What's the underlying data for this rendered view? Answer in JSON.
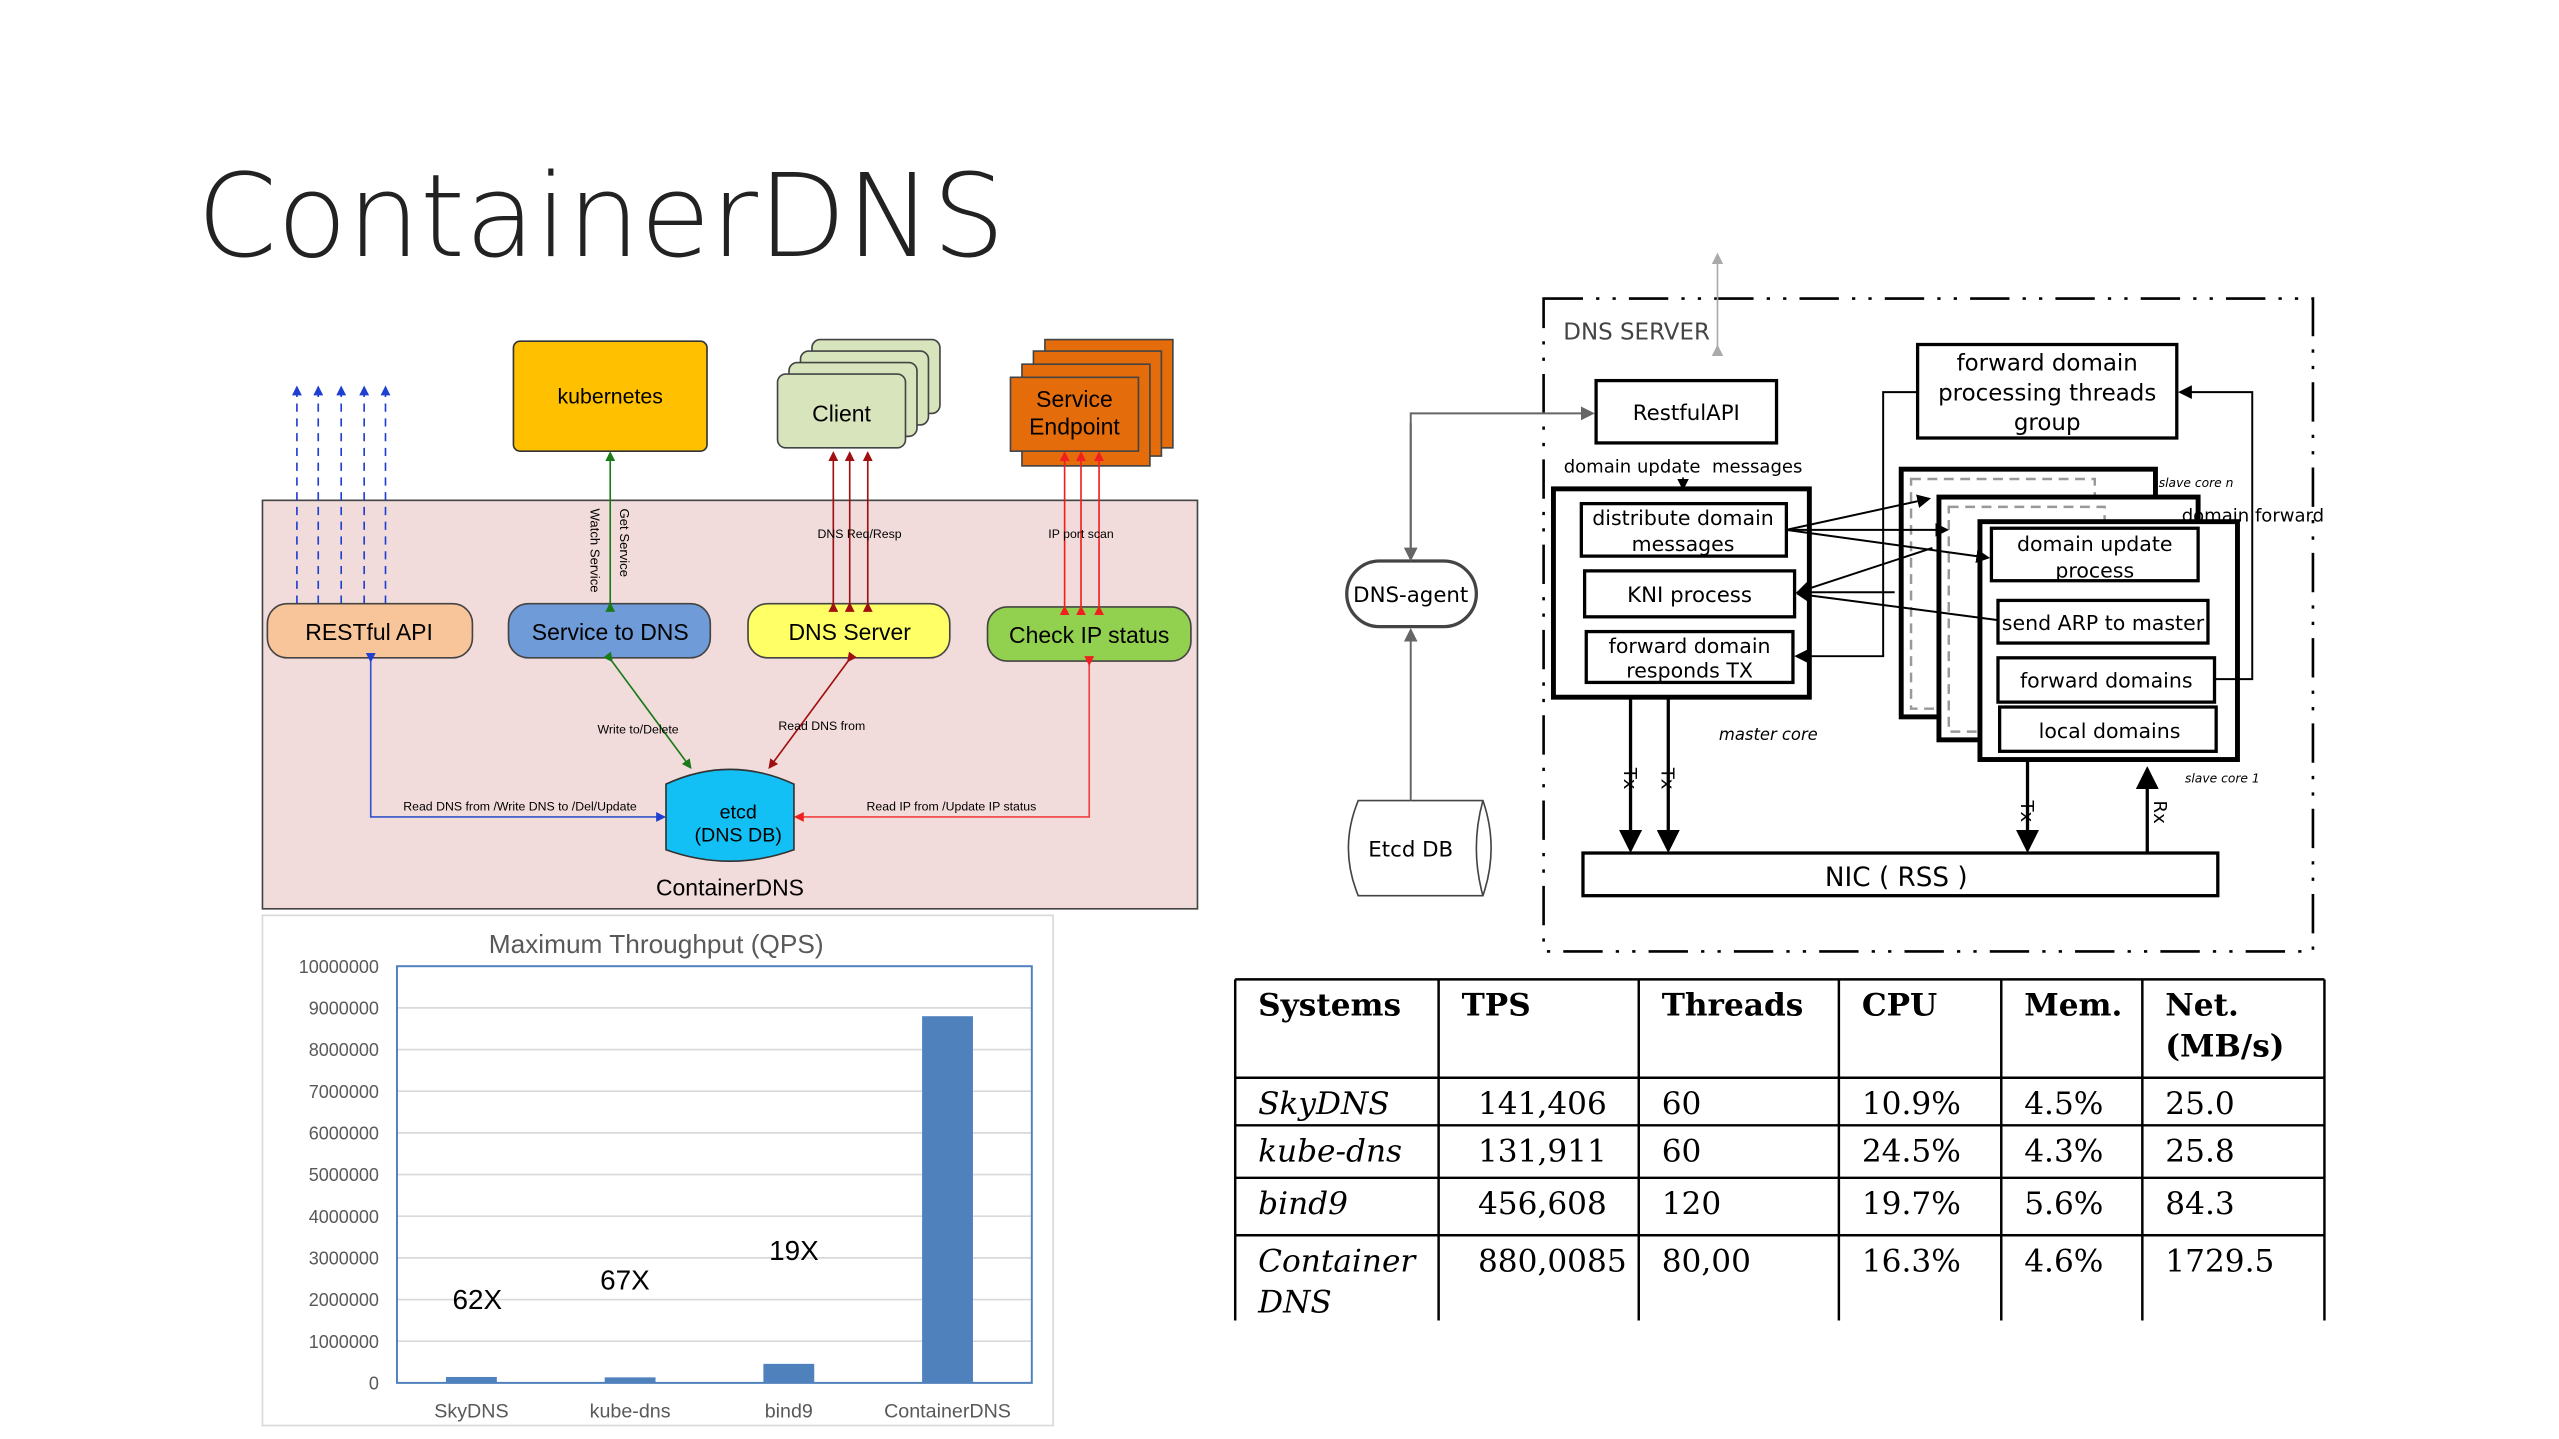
{
  "slide": {
    "title": "ContainerDNS"
  },
  "arch_diagram": {
    "kubernetes": "kubernetes",
    "client": "Client",
    "service_endpoint": [
      "Service",
      "Endpoint"
    ],
    "restful_api": "RESTful API",
    "service_to_dns": "Service to DNS",
    "dns_server": "DNS Server",
    "check_ip_status": "Check IP status",
    "watch_service": "Watch  Service",
    "get_service": "Get  Service",
    "dns_req_resp": "DNS Req/Resp",
    "ip_port_scan": "IP port scan",
    "write_delete": "Write to/Delete",
    "read_dns_from": "Read DNS from",
    "rest_etcd_label": "Read DNS from /Write DNS to /Del/Update",
    "ip_etcd_label": "Read IP from /Update IP status",
    "etcd": [
      "etcd",
      "(DNS DB)"
    ],
    "container_label": "ContainerDNS",
    "colors": {
      "kubernetes": "#ffc000",
      "client": "#d8e4bc",
      "endpoint": "#e46c0a",
      "restful": "#f8c49a",
      "service": "#6f9bd8",
      "dns_server": "#ffff66",
      "check_ip": "#92d050",
      "etcd": "#13c0f5",
      "container_bg": "#f2dcdb"
    }
  },
  "server_diagram": {
    "title": "DNS SERVER",
    "restful_api": "RestfulAPI",
    "domain_update_messages": "domain update  messages",
    "distribute": [
      "distribute domain",
      "messages"
    ],
    "kni": "KNI process",
    "forward_tx": [
      "forward domain",
      "responds TX"
    ],
    "master_core": "master core",
    "fdptg": [
      "forward domain",
      "processing threads",
      "group"
    ],
    "slave_core_n": "slave core n",
    "domain_forward": "domain forward",
    "domain_update_process": [
      "domain update",
      "process"
    ],
    "send_arp": "send ARP to master",
    "forward_domains": "forward domains",
    "local_domains": "local domains",
    "slave_core_1": "slave core 1",
    "tx": "Tx",
    "rx": "Rx",
    "nic": "NIC ( RSS )",
    "dns_agent": "DNS-agent",
    "etcd_db": "Etcd DB"
  },
  "chart_data": {
    "type": "bar",
    "title": "Maximum Throughput (QPS)",
    "categories": [
      "SkyDNS",
      "kube-dns",
      "bind9",
      "ContainerDNS"
    ],
    "values": [
      141406,
      131911,
      456608,
      8800085
    ],
    "ylim": [
      0,
      10000000
    ],
    "yticks": [
      "0",
      "1000000",
      "2000000",
      "3000000",
      "4000000",
      "5000000",
      "6000000",
      "7000000",
      "8000000",
      "9000000",
      "10000000"
    ],
    "annotations": [
      "62X",
      "67X",
      "19X"
    ],
    "grid": true,
    "bar_color": "#4f81bd"
  },
  "table": {
    "headers": [
      [
        "Systems"
      ],
      [
        "TPS"
      ],
      [
        "Threads"
      ],
      [
        "CPU"
      ],
      [
        "Mem."
      ],
      [
        "Net.",
        "(MB/s)"
      ]
    ],
    "rows": [
      [
        [
          "SkyDNS"
        ],
        [
          "141,406"
        ],
        [
          "60"
        ],
        [
          "10.9%"
        ],
        [
          "4.5%"
        ],
        [
          "25.0"
        ]
      ],
      [
        [
          "kube-dns"
        ],
        [
          "131,911"
        ],
        [
          "60"
        ],
        [
          "24.5%"
        ],
        [
          "4.3%"
        ],
        [
          "25.8"
        ]
      ],
      [
        [
          "bind9"
        ],
        [
          "456,608"
        ],
        [
          "120"
        ],
        [
          "19.7%"
        ],
        [
          "5.6%"
        ],
        [
          "84.3"
        ]
      ],
      [
        [
          "Container",
          "DNS"
        ],
        [
          "880,0085"
        ],
        [
          "80,00"
        ],
        [
          "16.3%"
        ],
        [
          "4.6%"
        ],
        [
          "1729.5"
        ]
      ]
    ]
  }
}
